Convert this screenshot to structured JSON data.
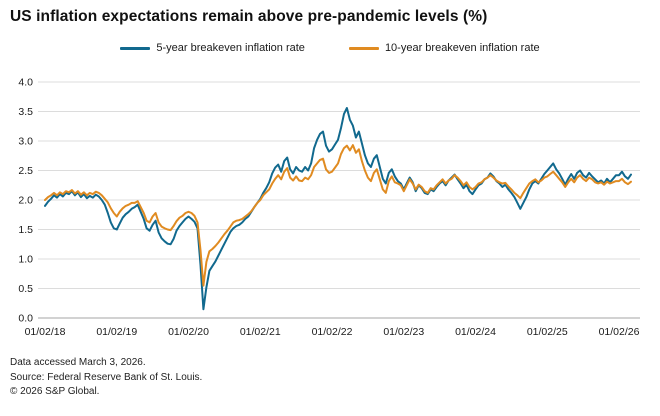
{
  "page": {
    "title": "US inflation expectations remain above pre-pandemic levels (%)"
  },
  "legend": {
    "items": [
      {
        "label": "5-year breakeven inflation rate",
        "color": "#11698e"
      },
      {
        "label": "10-year breakeven inflation rate",
        "color": "#e08b21"
      }
    ]
  },
  "footer": {
    "line1": "Data accessed March 3, 2026.",
    "line2": "Source: Federal Reserve Bank of St. Louis.",
    "line3": "© 2026 S&P Global."
  },
  "chart_data": {
    "type": "line",
    "title": "US inflation expectations remain above pre-pandemic levels (%)",
    "xlabel": "",
    "ylabel": "",
    "unit": "%",
    "ylim": [
      0.0,
      4.0
    ],
    "ytick_step": 0.5,
    "grid": "horizontal",
    "legend_position": "top",
    "x_tick_labels": [
      "01/02/18",
      "01/02/19",
      "01/02/20",
      "01/02/21",
      "01/02/22",
      "01/02/23",
      "01/02/24",
      "01/02/25",
      "01/02/26"
    ],
    "points_per_year": 24,
    "series": [
      {
        "name": "5-year breakeven inflation rate",
        "color": "#11698e",
        "values": [
          1.9,
          1.97,
          2.02,
          2.08,
          2.04,
          2.1,
          2.06,
          2.12,
          2.1,
          2.15,
          2.08,
          2.13,
          2.05,
          2.1,
          2.03,
          2.07,
          2.04,
          2.09,
          2.06,
          2.0,
          1.92,
          1.78,
          1.62,
          1.52,
          1.5,
          1.6,
          1.7,
          1.76,
          1.8,
          1.85,
          1.88,
          1.92,
          1.8,
          1.68,
          1.52,
          1.48,
          1.58,
          1.65,
          1.45,
          1.35,
          1.3,
          1.26,
          1.25,
          1.34,
          1.48,
          1.56,
          1.62,
          1.68,
          1.72,
          1.68,
          1.63,
          1.52,
          0.9,
          0.15,
          0.52,
          0.8,
          0.88,
          0.96,
          1.06,
          1.16,
          1.26,
          1.36,
          1.46,
          1.52,
          1.56,
          1.58,
          1.62,
          1.68,
          1.72,
          1.8,
          1.88,
          1.95,
          2.02,
          2.12,
          2.2,
          2.3,
          2.45,
          2.55,
          2.6,
          2.48,
          2.66,
          2.72,
          2.52,
          2.45,
          2.56,
          2.5,
          2.48,
          2.56,
          2.5,
          2.62,
          2.88,
          3.02,
          3.12,
          3.16,
          2.92,
          2.82,
          2.86,
          2.94,
          3.02,
          3.22,
          3.46,
          3.56,
          3.36,
          3.26,
          3.06,
          3.16,
          2.96,
          2.76,
          2.62,
          2.56,
          2.7,
          2.76,
          2.56,
          2.36,
          2.28,
          2.46,
          2.52,
          2.4,
          2.32,
          2.28,
          2.18,
          2.28,
          2.38,
          2.3,
          2.15,
          2.25,
          2.2,
          2.12,
          2.1,
          2.18,
          2.15,
          2.22,
          2.28,
          2.32,
          2.25,
          2.33,
          2.38,
          2.43,
          2.35,
          2.28,
          2.2,
          2.26,
          2.15,
          2.1,
          2.18,
          2.25,
          2.28,
          2.35,
          2.38,
          2.45,
          2.4,
          2.32,
          2.28,
          2.22,
          2.26,
          2.18,
          2.12,
          2.05,
          1.95,
          1.85,
          1.95,
          2.05,
          2.18,
          2.28,
          2.32,
          2.28,
          2.36,
          2.44,
          2.5,
          2.56,
          2.62,
          2.52,
          2.45,
          2.36,
          2.26,
          2.36,
          2.44,
          2.36,
          2.46,
          2.5,
          2.42,
          2.38,
          2.46,
          2.4,
          2.35,
          2.3,
          2.33,
          2.28,
          2.36,
          2.3,
          2.36,
          2.42,
          2.42,
          2.48,
          2.4,
          2.36,
          2.43
        ]
      },
      {
        "name": "10-year breakeven inflation rate",
        "color": "#e08b21",
        "values": [
          2.0,
          2.05,
          2.08,
          2.12,
          2.08,
          2.13,
          2.1,
          2.15,
          2.13,
          2.17,
          2.11,
          2.15,
          2.09,
          2.13,
          2.08,
          2.12,
          2.1,
          2.14,
          2.12,
          2.08,
          2.02,
          1.96,
          1.86,
          1.78,
          1.72,
          1.8,
          1.86,
          1.9,
          1.92,
          1.95,
          1.95,
          1.98,
          1.88,
          1.78,
          1.65,
          1.62,
          1.72,
          1.78,
          1.62,
          1.55,
          1.52,
          1.5,
          1.49,
          1.56,
          1.64,
          1.7,
          1.73,
          1.78,
          1.8,
          1.78,
          1.73,
          1.62,
          1.15,
          0.55,
          0.95,
          1.13,
          1.17,
          1.22,
          1.28,
          1.35,
          1.42,
          1.48,
          1.55,
          1.62,
          1.65,
          1.66,
          1.68,
          1.72,
          1.76,
          1.81,
          1.88,
          1.95,
          2.0,
          2.08,
          2.13,
          2.18,
          2.28,
          2.36,
          2.42,
          2.35,
          2.48,
          2.54,
          2.38,
          2.33,
          2.4,
          2.33,
          2.32,
          2.38,
          2.35,
          2.42,
          2.56,
          2.62,
          2.68,
          2.7,
          2.52,
          2.46,
          2.48,
          2.55,
          2.62,
          2.78,
          2.88,
          2.92,
          2.84,
          2.93,
          2.8,
          2.86,
          2.66,
          2.5,
          2.38,
          2.32,
          2.46,
          2.52,
          2.35,
          2.18,
          2.12,
          2.32,
          2.4,
          2.3,
          2.28,
          2.25,
          2.15,
          2.25,
          2.35,
          2.28,
          2.18,
          2.26,
          2.22,
          2.15,
          2.12,
          2.2,
          2.18,
          2.25,
          2.3,
          2.35,
          2.28,
          2.33,
          2.36,
          2.42,
          2.38,
          2.32,
          2.25,
          2.3,
          2.22,
          2.18,
          2.22,
          2.28,
          2.3,
          2.35,
          2.38,
          2.42,
          2.38,
          2.33,
          2.3,
          2.28,
          2.29,
          2.23,
          2.18,
          2.12,
          2.08,
          2.03,
          2.12,
          2.2,
          2.28,
          2.32,
          2.35,
          2.3,
          2.33,
          2.38,
          2.4,
          2.44,
          2.48,
          2.42,
          2.36,
          2.3,
          2.22,
          2.3,
          2.36,
          2.3,
          2.38,
          2.42,
          2.36,
          2.32,
          2.38,
          2.35,
          2.3,
          2.28,
          2.3,
          2.26,
          2.31,
          2.28,
          2.3,
          2.32,
          2.32,
          2.36,
          2.3,
          2.27,
          2.31
        ]
      }
    ]
  }
}
